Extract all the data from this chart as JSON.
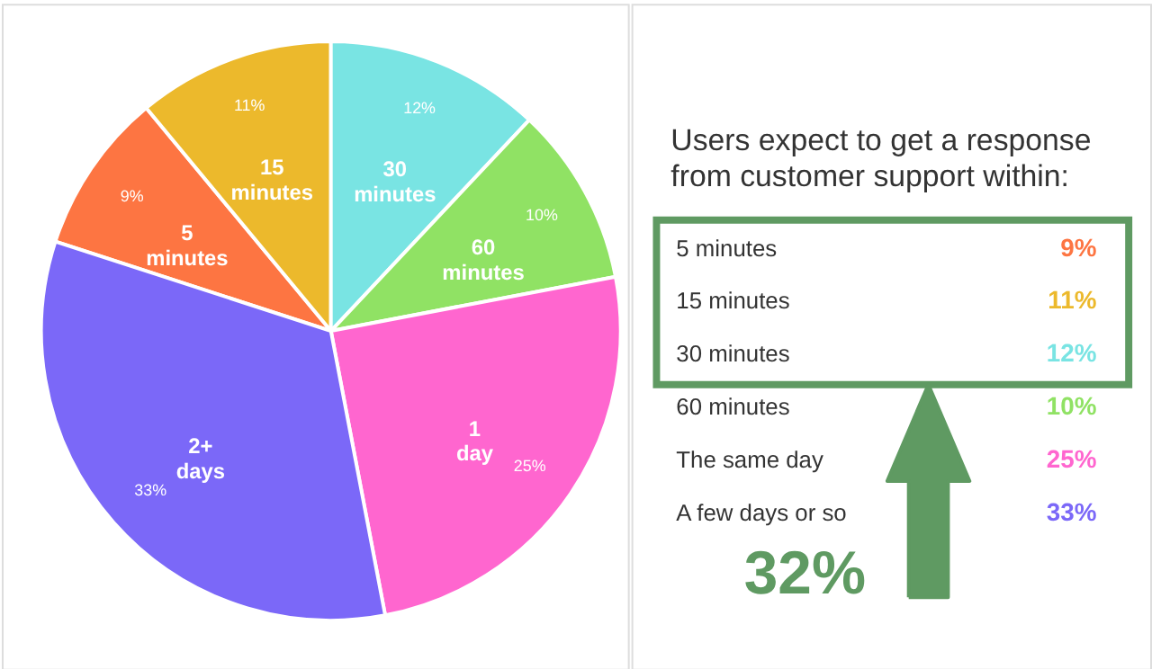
{
  "chart_data": [
    {
      "type": "pie",
      "categories": [
        "5 minutes",
        "15 minutes",
        "30 minutes",
        "60 minutes",
        "1 day",
        "2+ days"
      ],
      "values": [
        9,
        11,
        12,
        10,
        25,
        33
      ],
      "colors": [
        "#fd7542",
        "#ecb92c",
        "#79e4e3",
        "#90e264",
        "#ff66cf",
        "#7b68f8"
      ],
      "value_labels": [
        "9%",
        "11%",
        "12%",
        "10%",
        "25%",
        "33%"
      ]
    },
    {
      "type": "other",
      "title": "Users expect to get a response from customer support within:",
      "categories": [
        "5 minutes",
        "15 minutes",
        "30 minutes",
        "60 minutes",
        "The same day",
        "A few days or so"
      ],
      "values": [
        9,
        11,
        12,
        10,
        25,
        33
      ],
      "value_labels": [
        "9%",
        "11%",
        "12%",
        "10%",
        "25%",
        "33%"
      ],
      "colors": [
        "#fd7542",
        "#ecb92c",
        "#79e4e3",
        "#90e264",
        "#ff66cf",
        "#7b68f8"
      ],
      "annotations": [
        "32%"
      ]
    }
  ]
}
